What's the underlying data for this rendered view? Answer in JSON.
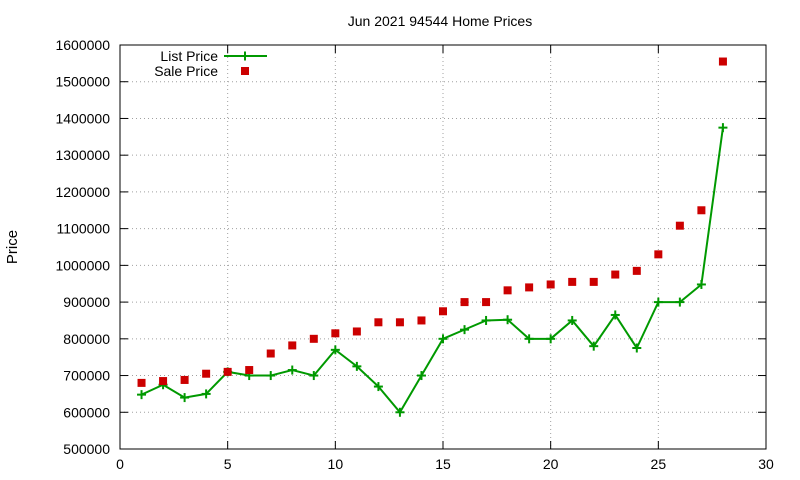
{
  "chart_data": {
    "type": "line",
    "title": "Jun 2021 94544 Home Prices",
    "xlabel": "",
    "ylabel": "Price",
    "xlim": [
      0,
      30
    ],
    "ylim": [
      500000,
      1600000
    ],
    "x_ticks": [
      0,
      5,
      10,
      15,
      20,
      25,
      30
    ],
    "y_ticks": [
      500000,
      600000,
      700000,
      800000,
      900000,
      1000000,
      1100000,
      1200000,
      1300000,
      1400000,
      1500000,
      1600000
    ],
    "grid": true,
    "legend_position": "top-left",
    "series": [
      {
        "name": "List Price",
        "style": "line-with-plus-markers",
        "color": "#009900",
        "x": [
          1,
          2,
          3,
          4,
          5,
          6,
          7,
          8,
          9,
          10,
          11,
          12,
          13,
          14,
          15,
          16,
          17,
          18,
          19,
          20,
          21,
          22,
          23,
          24,
          25,
          26,
          27,
          28
        ],
        "values": [
          648000,
          675000,
          640000,
          650000,
          710000,
          700000,
          700000,
          715000,
          700000,
          770000,
          725000,
          670000,
          600000,
          700000,
          800000,
          825000,
          850000,
          852000,
          800000,
          800000,
          850000,
          780000,
          865000,
          775000,
          900000,
          900000,
          948000,
          1375000
        ]
      },
      {
        "name": "Sale Price",
        "style": "square-markers",
        "color": "#cc0000",
        "x": [
          1,
          2,
          3,
          4,
          5,
          6,
          7,
          8,
          9,
          10,
          11,
          12,
          13,
          14,
          15,
          16,
          17,
          18,
          19,
          20,
          21,
          22,
          23,
          24,
          25,
          26,
          27,
          28
        ],
        "values": [
          680000,
          685000,
          688000,
          705000,
          710000,
          715000,
          760000,
          782000,
          800000,
          815000,
          820000,
          845000,
          845000,
          850000,
          875000,
          900000,
          900000,
          932000,
          940000,
          948000,
          955000,
          955000,
          975000,
          985000,
          1030000,
          1108000,
          1150000,
          1555000
        ]
      }
    ]
  }
}
